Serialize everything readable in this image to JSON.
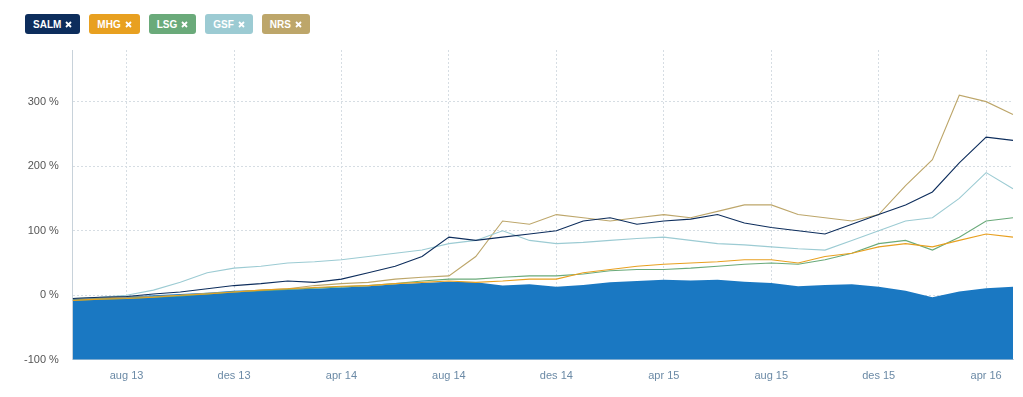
{
  "chart_data": {
    "type": "line",
    "legend": "top-left",
    "grid": true,
    "categories": [
      null,
      null,
      "aug 13",
      null,
      null,
      null,
      "des 13",
      null,
      null,
      null,
      "apr 14",
      null,
      null,
      null,
      "aug 14",
      null,
      null,
      null,
      "des 14",
      null,
      null,
      null,
      "apr 15",
      null,
      null,
      null,
      "aug 15",
      null,
      null,
      null,
      "des 15",
      null,
      null,
      null,
      "apr 16",
      null
    ],
    "ylim": [
      -100,
      380
    ],
    "yticks": [
      {
        "value": -100,
        "label": "-100 %"
      },
      {
        "value": 0,
        "label": "0 %"
      },
      {
        "value": 100,
        "label": "100 %"
      },
      {
        "value": 200,
        "label": "200 %"
      },
      {
        "value": 300,
        "label": "300 %"
      }
    ],
    "series": [
      {
        "type": "area",
        "color": "#1a78c2",
        "values": [
          -5,
          -3,
          -2,
          0,
          2,
          4,
          7,
          8,
          9,
          10,
          12,
          14,
          17,
          19,
          21,
          20,
          15,
          17,
          13,
          16,
          20,
          22,
          24,
          23,
          24,
          21,
          19,
          14,
          16,
          17,
          13,
          7,
          -3,
          6,
          11,
          13
        ]
      },
      {
        "name": "SALM",
        "type": "line",
        "color": "#0d2d5c",
        "values": [
          -5,
          -3,
          -2,
          2,
          5,
          10,
          15,
          18,
          22,
          20,
          25,
          35,
          45,
          60,
          90,
          85,
          90,
          95,
          100,
          115,
          120,
          110,
          115,
          118,
          125,
          112,
          105,
          100,
          95,
          110,
          125,
          140,
          160,
          205,
          245,
          240
        ]
      },
      {
        "name": "MHG",
        "type": "line",
        "color": "#e8a020",
        "values": [
          -8,
          -6,
          -5,
          -3,
          0,
          2,
          5,
          8,
          10,
          12,
          14,
          15,
          18,
          20,
          22,
          20,
          22,
          25,
          25,
          35,
          40,
          45,
          48,
          50,
          52,
          55,
          55,
          50,
          60,
          65,
          75,
          80,
          75,
          85,
          95,
          90
        ]
      },
      {
        "name": "LSG",
        "type": "line",
        "color": "#6aaa7a",
        "values": [
          -8,
          -6,
          -5,
          -3,
          -1,
          2,
          5,
          7,
          9,
          11,
          13,
          15,
          18,
          22,
          25,
          25,
          28,
          30,
          30,
          33,
          38,
          40,
          40,
          42,
          45,
          48,
          50,
          48,
          55,
          65,
          80,
          85,
          70,
          90,
          115,
          120
        ]
      },
      {
        "name": "GSF",
        "type": "line",
        "color": "#9ccbd3",
        "values": [
          -5,
          -3,
          0,
          8,
          20,
          35,
          42,
          45,
          50,
          52,
          55,
          60,
          65,
          70,
          80,
          85,
          100,
          85,
          80,
          82,
          85,
          88,
          90,
          85,
          80,
          78,
          75,
          72,
          70,
          85,
          100,
          115,
          120,
          150,
          190,
          165
        ]
      },
      {
        "name": "NRS",
        "type": "line",
        "color": "#bda66a",
        "values": [
          -5,
          -4,
          -3,
          -2,
          0,
          3,
          5,
          8,
          10,
          15,
          18,
          20,
          25,
          28,
          30,
          60,
          115,
          110,
          125,
          120,
          115,
          120,
          125,
          120,
          130,
          140,
          140,
          125,
          120,
          115,
          125,
          170,
          210,
          310,
          300,
          280
        ]
      }
    ]
  }
}
